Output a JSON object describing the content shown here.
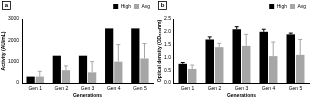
{
  "chart_data": [
    {
      "type": "bar",
      "title": "a",
      "x_label": "Generations",
      "y_label": "Activity (AU/mL)",
      "categories": [
        "Gen 1",
        "Gen 2",
        "Gen 3",
        "Gen 4",
        "Gen 5"
      ],
      "series": [
        {
          "name": "High",
          "color": "#000000",
          "values": [
            300,
            1280,
            1280,
            2560,
            2560
          ]
        },
        {
          "name": "Avg",
          "color": "#a6a6a6",
          "values": [
            300,
            600,
            500,
            1000,
            1150
          ],
          "errors": [
            250,
            200,
            500,
            800,
            700
          ]
        }
      ],
      "ylim": [
        0,
        3000
      ],
      "yticks": [
        0,
        1000,
        2000,
        3000
      ],
      "legend": "top-right",
      "grid": false
    },
    {
      "type": "bar",
      "title": "b",
      "x_label": "Generations",
      "y_label": "Optical density (OD₆₀₀nm)",
      "categories": [
        "Gen 1",
        "Gen 2",
        "Gen 3",
        "Gen 4",
        "Gen 5"
      ],
      "series": [
        {
          "name": "High",
          "color": "#000000",
          "values": [
            0.75,
            1.7,
            2.1,
            2.0,
            1.9
          ],
          "errors": [
            0.05,
            0.1,
            0.1,
            0.1,
            0.05
          ]
        },
        {
          "name": "Avg",
          "color": "#a6a6a6",
          "values": [
            0.55,
            1.4,
            1.45,
            1.05,
            1.1
          ],
          "errors": [
            0.15,
            0.15,
            0.45,
            0.55,
            0.6
          ]
        }
      ],
      "ylim": [
        0,
        2.5
      ],
      "yticks": [
        {
          "value": 0,
          "label": "0.0"
        },
        0.5,
        {
          "value": 1,
          "label": "1.0"
        },
        1.5,
        {
          "value": 2,
          "label": "2.0"
        },
        2.5
      ],
      "legend": "top-right",
      "grid": false
    }
  ]
}
